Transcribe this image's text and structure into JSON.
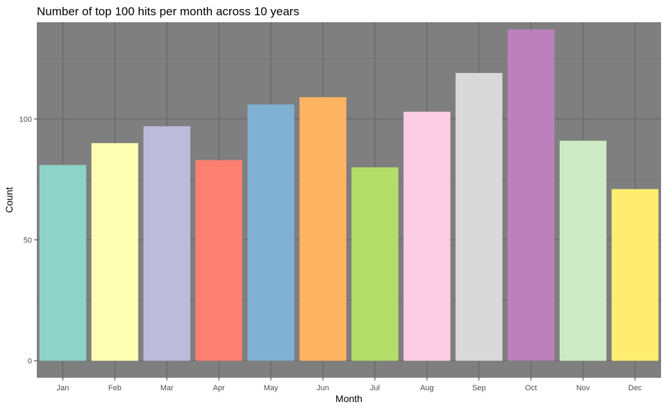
{
  "chart_data": {
    "type": "bar",
    "title": "Number of top 100 hits per month across 10 years",
    "xlabel": "Month",
    "ylabel": "Count",
    "categories": [
      "Jan",
      "Feb",
      "Mar",
      "Apr",
      "May",
      "Jun",
      "Jul",
      "Aug",
      "Sep",
      "Oct",
      "Nov",
      "Dec"
    ],
    "values": [
      81,
      90,
      97,
      83,
      106,
      109,
      80,
      103,
      119,
      137,
      91,
      71
    ],
    "colors": [
      "#8dd3c7",
      "#ffffb3",
      "#bebada",
      "#fb8072",
      "#80b1d3",
      "#fdb462",
      "#b3de69",
      "#fccde5",
      "#d9d9d9",
      "#bc80bd",
      "#ccebc5",
      "#ffed6f"
    ],
    "ylim": [
      -7,
      140
    ],
    "yticks": [
      0,
      50,
      100
    ],
    "y_tick_labels": [
      "0",
      "50",
      "100"
    ],
    "panel_background": "#7f7f7f",
    "grid": true,
    "legend": "none"
  }
}
